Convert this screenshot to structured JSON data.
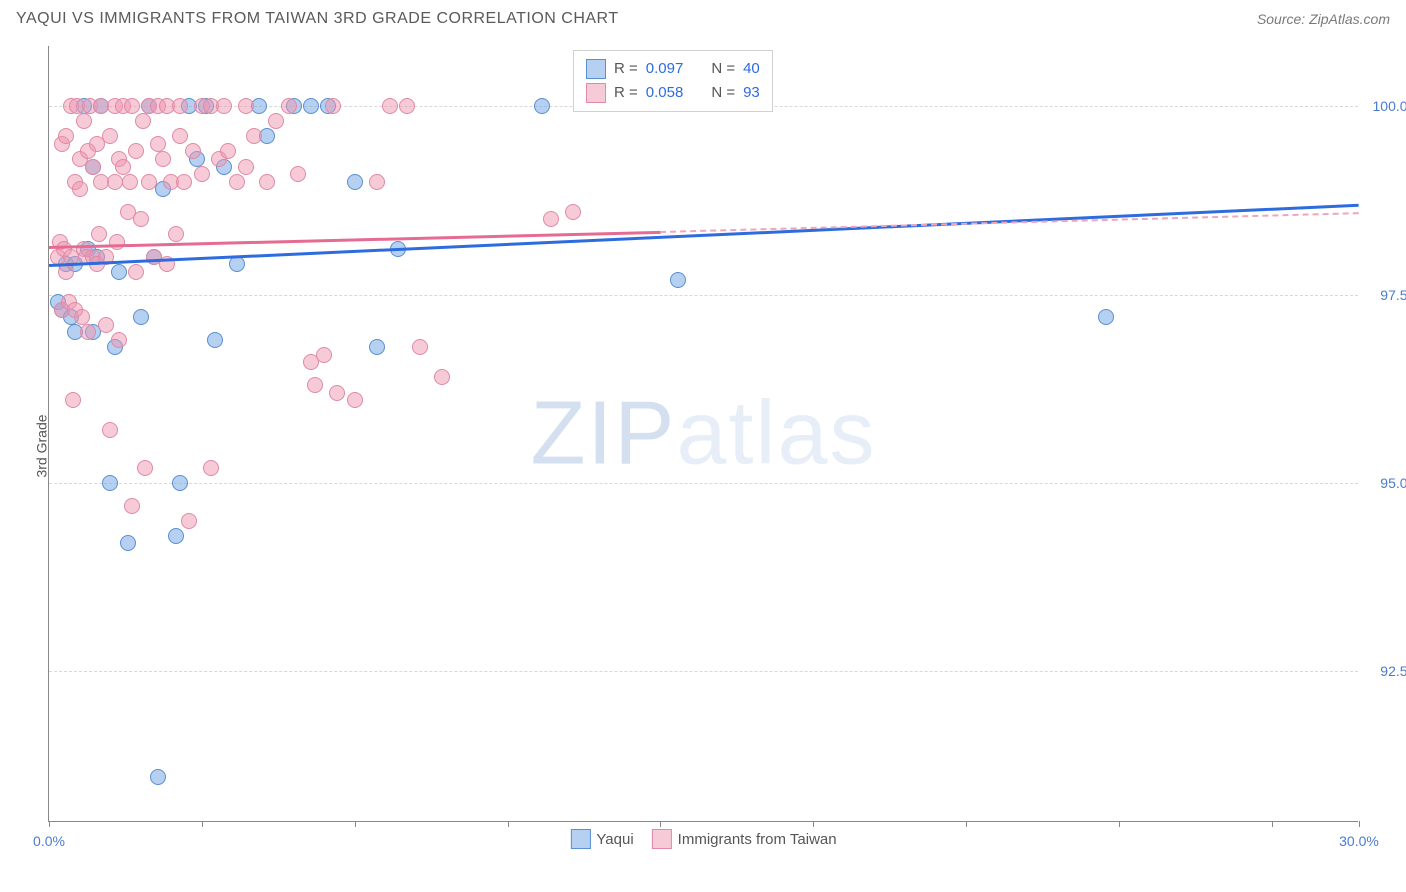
{
  "header": {
    "title": "YAQUI VS IMMIGRANTS FROM TAIWAN 3RD GRADE CORRELATION CHART",
    "source": "Source: ZipAtlas.com"
  },
  "chart": {
    "type": "scatter",
    "ylabel": "3rd Grade",
    "xlim": [
      0,
      30
    ],
    "ylim": [
      90.5,
      100.8
    ],
    "x_ticks": [
      0,
      3.5,
      7,
      10.5,
      14,
      17.5,
      21,
      24.5,
      28,
      30
    ],
    "x_tick_labels": {
      "0": "0.0%",
      "30": "30.0%"
    },
    "y_gridlines": [
      92.5,
      95.0,
      97.5,
      100.0
    ],
    "y_tick_labels": [
      "92.5%",
      "95.0%",
      "97.5%",
      "100.0%"
    ],
    "background_color": "#ffffff",
    "grid_color": "#d8d8d8",
    "axis_color": "#888888",
    "series": [
      {
        "name": "Yaqui",
        "color_fill": "rgba(120,170,230,0.55)",
        "color_stroke": "#5a8fd0",
        "trend_color": "#2d6cdf",
        "R": "0.097",
        "N": "40",
        "trend": {
          "x1": 0,
          "y1": 97.9,
          "x2": 30,
          "y2": 98.7
        },
        "points": [
          [
            0.2,
            97.4
          ],
          [
            0.3,
            97.3
          ],
          [
            0.4,
            97.9
          ],
          [
            0.5,
            97.2
          ],
          [
            0.6,
            97.0
          ],
          [
            0.6,
            97.9
          ],
          [
            0.8,
            100.0
          ],
          [
            0.9,
            98.1
          ],
          [
            1.0,
            97.0
          ],
          [
            1.0,
            99.2
          ],
          [
            1.1,
            98.0
          ],
          [
            1.2,
            100.0
          ],
          [
            1.4,
            95.0
          ],
          [
            1.5,
            96.8
          ],
          [
            1.6,
            97.8
          ],
          [
            1.8,
            94.2
          ],
          [
            2.1,
            97.2
          ],
          [
            2.3,
            100.0
          ],
          [
            2.4,
            98.0
          ],
          [
            2.6,
            98.9
          ],
          [
            2.9,
            94.3
          ],
          [
            3.0,
            95.0
          ],
          [
            3.2,
            100.0
          ],
          [
            3.4,
            99.3
          ],
          [
            3.6,
            100.0
          ],
          [
            3.8,
            96.9
          ],
          [
            4.0,
            99.2
          ],
          [
            4.3,
            97.9
          ],
          [
            4.8,
            100.0
          ],
          [
            5.0,
            99.6
          ],
          [
            5.6,
            100.0
          ],
          [
            6.0,
            100.0
          ],
          [
            6.4,
            100.0
          ],
          [
            7.0,
            99.0
          ],
          [
            7.5,
            96.8
          ],
          [
            8.0,
            98.1
          ],
          [
            11.3,
            100.0
          ],
          [
            14.4,
            97.7
          ],
          [
            24.2,
            97.2
          ],
          [
            2.5,
            91.1
          ]
        ]
      },
      {
        "name": "Immigrants from Taiwan",
        "color_fill": "rgba(240,150,175,0.5)",
        "color_stroke": "#e08aa5",
        "trend_color": "#e66b93",
        "R": "0.058",
        "N": "93",
        "trend": {
          "x1": 0,
          "y1": 98.15,
          "x2": 14,
          "y2": 98.35,
          "dash_to_x": 30,
          "dash_to_y": 98.6
        },
        "points": [
          [
            0.2,
            98.0
          ],
          [
            0.25,
            98.2
          ],
          [
            0.3,
            99.5
          ],
          [
            0.3,
            97.3
          ],
          [
            0.35,
            98.1
          ],
          [
            0.4,
            97.8
          ],
          [
            0.4,
            99.6
          ],
          [
            0.45,
            97.4
          ],
          [
            0.5,
            100.0
          ],
          [
            0.5,
            98.0
          ],
          [
            0.55,
            96.1
          ],
          [
            0.6,
            99.0
          ],
          [
            0.6,
            97.3
          ],
          [
            0.65,
            100.0
          ],
          [
            0.7,
            98.9
          ],
          [
            0.7,
            99.3
          ],
          [
            0.75,
            97.2
          ],
          [
            0.8,
            98.1
          ],
          [
            0.8,
            99.8
          ],
          [
            0.85,
            98.0
          ],
          [
            0.9,
            99.4
          ],
          [
            0.9,
            97.0
          ],
          [
            0.95,
            100.0
          ],
          [
            1.0,
            98.0
          ],
          [
            1.0,
            99.2
          ],
          [
            1.1,
            97.9
          ],
          [
            1.1,
            99.5
          ],
          [
            1.15,
            98.3
          ],
          [
            1.2,
            99.0
          ],
          [
            1.2,
            100.0
          ],
          [
            1.3,
            98.0
          ],
          [
            1.3,
            97.1
          ],
          [
            1.4,
            99.6
          ],
          [
            1.4,
            95.7
          ],
          [
            1.5,
            100.0
          ],
          [
            1.5,
            99.0
          ],
          [
            1.55,
            98.2
          ],
          [
            1.6,
            99.3
          ],
          [
            1.6,
            96.9
          ],
          [
            1.7,
            100.0
          ],
          [
            1.7,
            99.2
          ],
          [
            1.8,
            98.6
          ],
          [
            1.85,
            99.0
          ],
          [
            1.9,
            100.0
          ],
          [
            1.9,
            94.7
          ],
          [
            2.0,
            99.4
          ],
          [
            2.0,
            97.8
          ],
          [
            2.1,
            98.5
          ],
          [
            2.15,
            99.8
          ],
          [
            2.2,
            95.2
          ],
          [
            2.3,
            100.0
          ],
          [
            2.3,
            99.0
          ],
          [
            2.4,
            98.0
          ],
          [
            2.5,
            99.5
          ],
          [
            2.5,
            100.0
          ],
          [
            2.6,
            99.3
          ],
          [
            2.7,
            100.0
          ],
          [
            2.7,
            97.9
          ],
          [
            2.8,
            99.0
          ],
          [
            2.9,
            98.3
          ],
          [
            3.0,
            99.6
          ],
          [
            3.0,
            100.0
          ],
          [
            3.1,
            99.0
          ],
          [
            3.2,
            94.5
          ],
          [
            3.3,
            99.4
          ],
          [
            3.5,
            100.0
          ],
          [
            3.5,
            99.1
          ],
          [
            3.7,
            100.0
          ],
          [
            3.7,
            95.2
          ],
          [
            3.9,
            99.3
          ],
          [
            4.0,
            100.0
          ],
          [
            4.1,
            99.4
          ],
          [
            4.3,
            99.0
          ],
          [
            4.5,
            100.0
          ],
          [
            4.5,
            99.2
          ],
          [
            4.7,
            99.6
          ],
          [
            5.0,
            99.0
          ],
          [
            5.2,
            99.8
          ],
          [
            5.5,
            100.0
          ],
          [
            5.7,
            99.1
          ],
          [
            6.0,
            96.6
          ],
          [
            6.1,
            96.3
          ],
          [
            6.3,
            96.7
          ],
          [
            6.5,
            100.0
          ],
          [
            6.6,
            96.2
          ],
          [
            7.0,
            96.1
          ],
          [
            7.5,
            99.0
          ],
          [
            7.8,
            100.0
          ],
          [
            8.2,
            100.0
          ],
          [
            8.5,
            96.8
          ],
          [
            9.0,
            96.4
          ],
          [
            11.5,
            98.5
          ],
          [
            12.0,
            98.6
          ]
        ]
      }
    ],
    "legend_bottom": [
      {
        "swatch": "blue",
        "label": "Yaqui"
      },
      {
        "swatch": "pink",
        "label": "Immigrants from Taiwan"
      }
    ],
    "watermark": {
      "bold": "ZIP",
      "light": "atlas"
    }
  }
}
